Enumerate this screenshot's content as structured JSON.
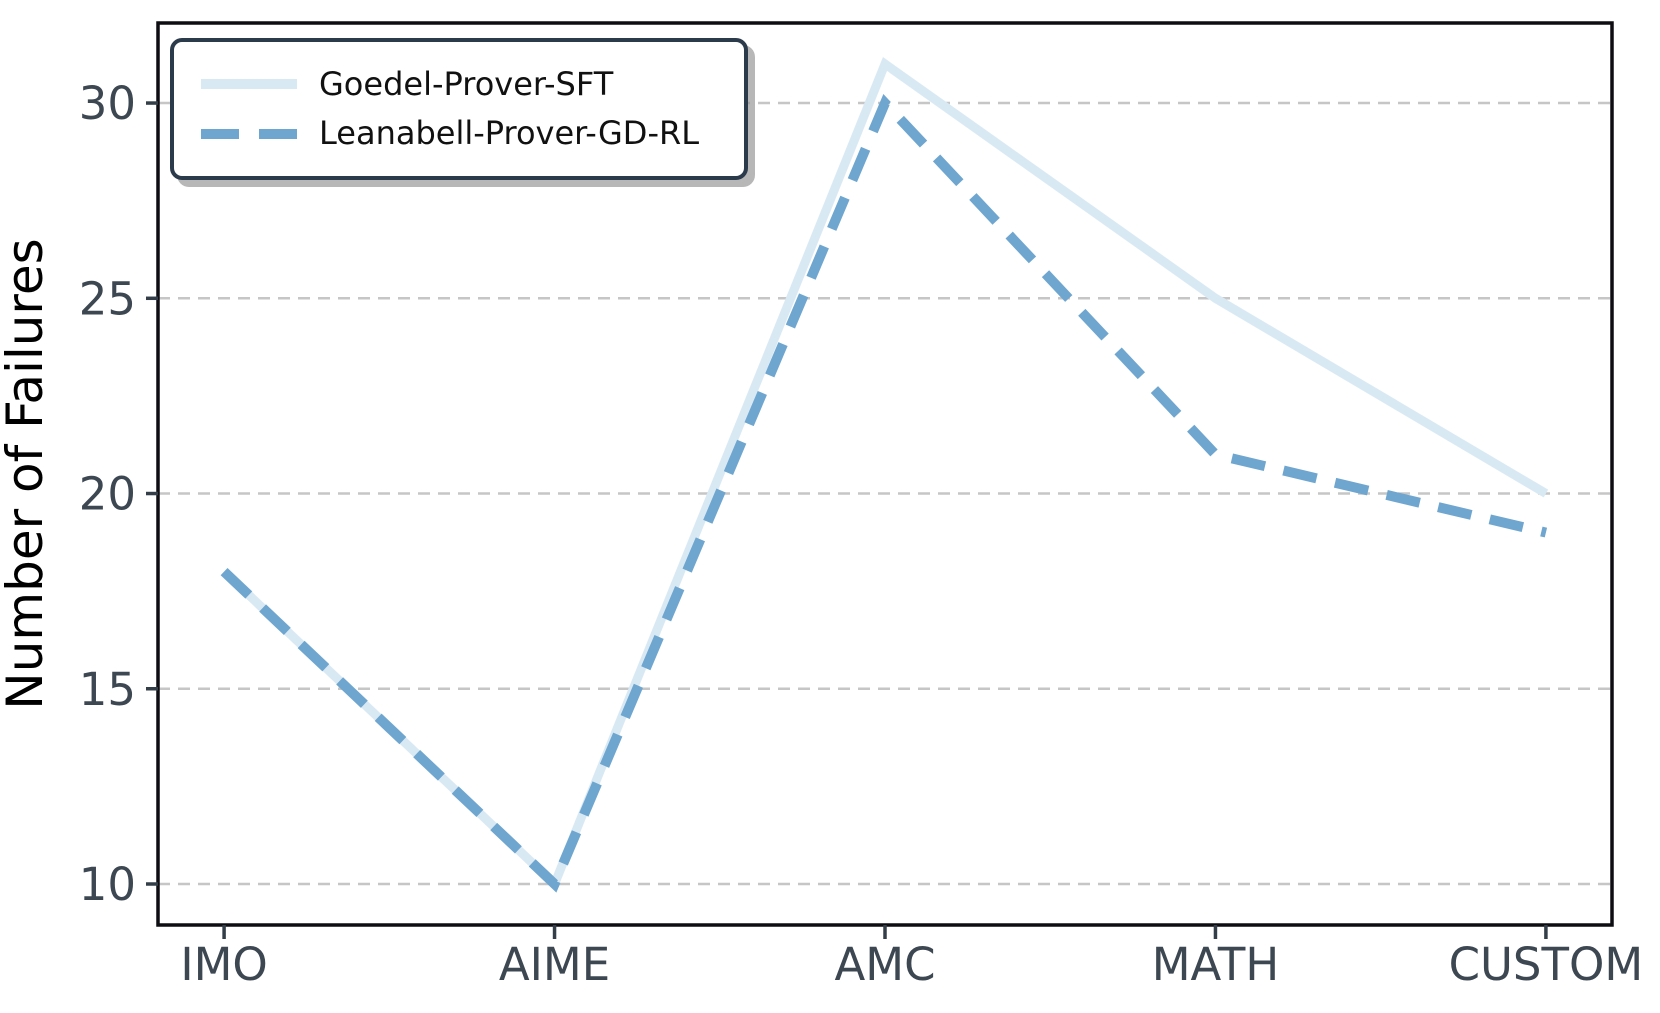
{
  "figure": {
    "background": "#ffffff",
    "spine_color": "#0d0d12",
    "tick_mark_color": "#333e49",
    "tick_label_color": "#3d4752",
    "grid_color": "#c6c6c6",
    "ylabel_color": "#000000"
  },
  "legend": {
    "position": "upper-left",
    "border_color": "#2c3b4c"
  },
  "chart_data": {
    "type": "line",
    "title": "",
    "xlabel": "",
    "ylabel": "Number of Failures",
    "categories": [
      "IMO",
      "AIME",
      "AMC",
      "MATH",
      "CUSTOM"
    ],
    "series": [
      {
        "name": "Goedel-Prover-SFT",
        "values": [
          18,
          10,
          31,
          25,
          20
        ],
        "color": "#d9e9f4",
        "dash": null,
        "width": 9
      },
      {
        "name": "Leanabell-Prover-GD-RL",
        "values": [
          18,
          10,
          30,
          21,
          19
        ],
        "color": "#6fa6cf",
        "dash": [
          34,
          19
        ],
        "width": 10
      }
    ],
    "yticks": [
      10,
      15,
      20,
      25,
      30
    ],
    "ylim": [
      8.95,
      32.05
    ],
    "x_index_lim": [
      -0.2,
      4.2
    ],
    "grid": "horizontal-dashed",
    "legend_position": "upper-left"
  }
}
